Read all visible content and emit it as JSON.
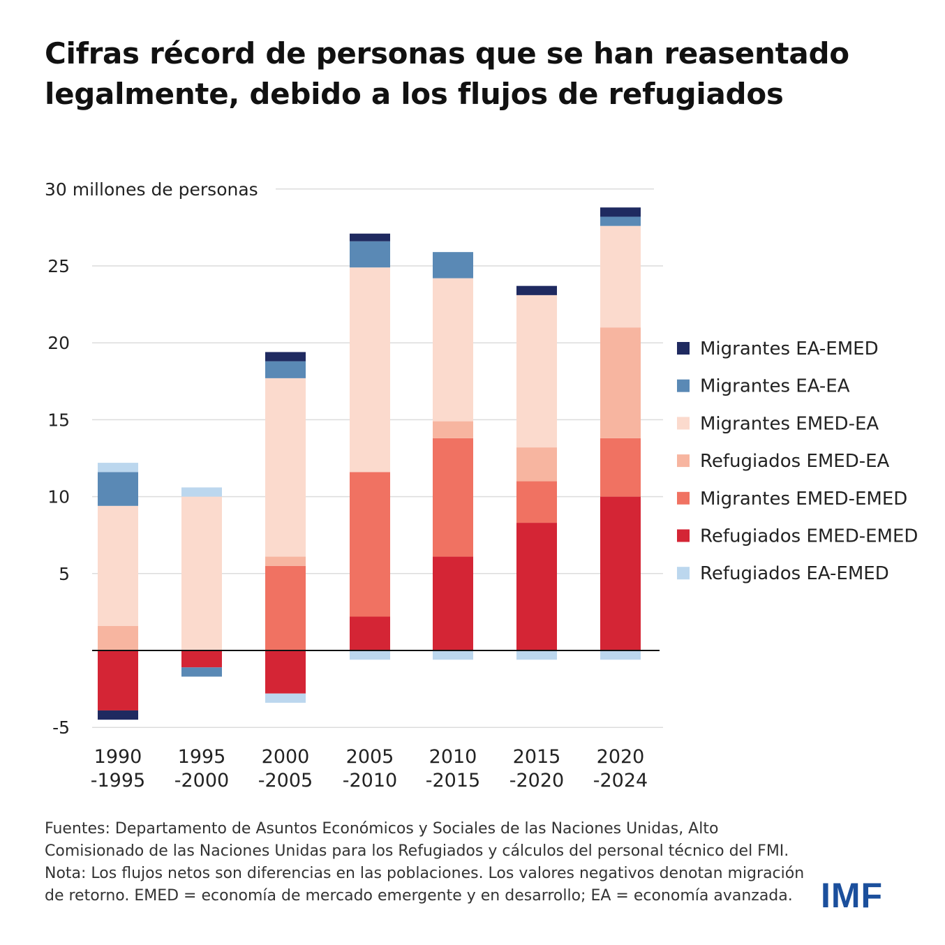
{
  "title": "Cifras récord de personas que se han reasentado legalmente, debido a los flujos de refugiados",
  "source": "Fuentes: Departamento de Asuntos Económicos y Sociales de las Naciones Unidas, Alto Comisionado de las Naciones Unidas para los Refugiados y cálculos del personal técnico del FMI. Nota: Los flujos netos son diferencias en las poblaciones. Los valores negativos denotan migración de retorno. EMED = economía de mercado emergente y en desarrollo; EA = economía avanzada.",
  "logo": "IMF",
  "chart_data": {
    "type": "bar",
    "stacked": true,
    "title": "Cifras récord de personas que se han reasentado legalmente, debido a los flujos de refugiados",
    "ylabel": "30 millones de personas",
    "xlabel": "",
    "ylim": [
      -5,
      30
    ],
    "yticks": [
      -5,
      0,
      5,
      10,
      15,
      20,
      25,
      30
    ],
    "ytick_labels": [
      "-5",
      "0",
      "5",
      "10",
      "15",
      "20",
      "25",
      "30 millones de personas"
    ],
    "grid": true,
    "legend_position": "right",
    "categories": [
      "1990\n-1995",
      "1995\n-2000",
      "2000\n-2005",
      "2005\n-2010",
      "2010\n-2015",
      "2015\n-2020",
      "2020\n-2024"
    ],
    "category_lines": [
      [
        "1990",
        "-1995"
      ],
      [
        "1995",
        "-2000"
      ],
      [
        "2000",
        "-2005"
      ],
      [
        "2005",
        "-2010"
      ],
      [
        "2010",
        "-2015"
      ],
      [
        "2015",
        "-2020"
      ],
      [
        "2020",
        "-2024"
      ]
    ],
    "series": [
      {
        "name": "Refugiados EMED-EMED",
        "color": "#d42535",
        "values": [
          -3.9,
          -1.1,
          -2.8,
          2.2,
          6.1,
          8.3,
          10.0
        ]
      },
      {
        "name": "Migrantes EMED-EMED",
        "color": "#f07262",
        "values": [
          0,
          0,
          5.5,
          9.4,
          7.7,
          2.7,
          3.8
        ]
      },
      {
        "name": "Refugiados EMED-EA",
        "color": "#f7b5a0",
        "values": [
          1.6,
          0,
          0.6,
          0,
          1.1,
          2.2,
          7.2
        ]
      },
      {
        "name": "Migrantes EMED-EA",
        "color": "#fbdacd",
        "values": [
          7.8,
          10.0,
          11.6,
          13.3,
          9.3,
          9.9,
          6.6
        ]
      },
      {
        "name": "Migrantes EA-EA",
        "color": "#5a89b5",
        "values": [
          2.2,
          -0.6,
          1.1,
          1.7,
          1.7,
          0,
          0.6
        ]
      },
      {
        "name": "Migrantes EA-EMED",
        "color": "#1f2a60",
        "values": [
          -0.6,
          0,
          0.6,
          0.5,
          0,
          0.6,
          0.6
        ]
      },
      {
        "name": "Refugiados EA-EMED",
        "color": "#bcd7ee",
        "values": [
          0.6,
          0.6,
          -0.6,
          -0.6,
          -0.6,
          -0.6,
          -0.6
        ]
      }
    ],
    "legend_order": [
      "Migrantes EA-EMED",
      "Migrantes EA-EA",
      "Migrantes EMED-EA",
      "Refugiados EMED-EA",
      "Migrantes EMED-EMED",
      "Refugiados EMED-EMED",
      "Refugiados EA-EMED"
    ]
  }
}
